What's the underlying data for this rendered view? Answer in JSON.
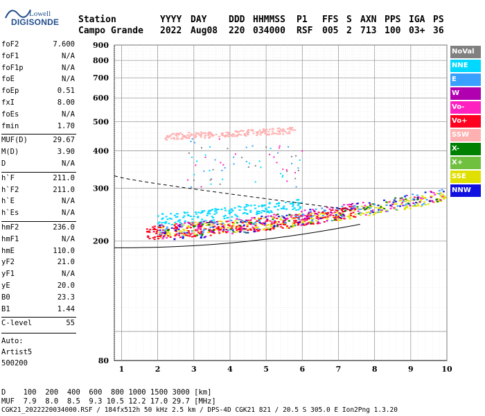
{
  "logo": {
    "top": "Lowell",
    "bottom": "DIGISONDE"
  },
  "header": {
    "labels": [
      "Station",
      "YYYY",
      "DAY",
      "DDD",
      "HHMMSS",
      "P1",
      "FFS",
      "S",
      "AXN",
      "PPS",
      "IGA",
      "PS"
    ],
    "values": [
      "Campo Grande",
      "2022",
      "Aug08",
      "220",
      "034000",
      "RSF",
      "005",
      "2",
      "713",
      "100",
      "03+",
      "36"
    ]
  },
  "params": [
    {
      "label": "foF2",
      "value": "7.600"
    },
    {
      "label": "foF1",
      "value": "N/A"
    },
    {
      "label": "foF1p",
      "value": "N/A"
    },
    {
      "label": "foE",
      "value": "N/A"
    },
    {
      "label": "foEp",
      "value": "0.51"
    },
    {
      "label": "fxI",
      "value": "8.00"
    },
    {
      "label": "foEs",
      "value": "N/A"
    },
    {
      "label": "fmin",
      "value": "1.70"
    },
    {
      "label": "MUF(D)",
      "value": "29.67"
    },
    {
      "label": "M(D)",
      "value": "3.90"
    },
    {
      "label": "D",
      "value": "N/A"
    },
    {
      "label": "h`F",
      "value": "211.0"
    },
    {
      "label": "h`F2",
      "value": "211.0"
    },
    {
      "label": "h`E",
      "value": "N/A"
    },
    {
      "label": "h`Es",
      "value": "N/A"
    },
    {
      "label": "hmF2",
      "value": "236.0"
    },
    {
      "label": "hmF1",
      "value": "N/A"
    },
    {
      "label": "hmE",
      "value": "110.0"
    },
    {
      "label": "yF2",
      "value": "21.0"
    },
    {
      "label": "yF1",
      "value": "N/A"
    },
    {
      "label": "yE",
      "value": "20.0"
    },
    {
      "label": "B0",
      "value": "23.3"
    },
    {
      "label": "B1",
      "value": "1.44"
    },
    {
      "label": "C-level",
      "value": "55"
    }
  ],
  "auto": {
    "line1": "Auto:",
    "line2": "Artist5",
    "line3": "500200"
  },
  "legend": [
    {
      "name": "NoVal",
      "color": "#808080"
    },
    {
      "name": "NNE",
      "color": "#00d8ff"
    },
    {
      "name": "E",
      "color": "#3aa0ff"
    },
    {
      "name": "W",
      "color": "#b000b0"
    },
    {
      "name": "Vo-",
      "color": "#ff20c0"
    },
    {
      "name": "Vo+",
      "color": "#ff0020"
    },
    {
      "name": "SSW",
      "color": "#ffb0b0"
    },
    {
      "name": "X-",
      "color": "#008000"
    },
    {
      "name": "X+",
      "color": "#70c040"
    },
    {
      "name": "SSE",
      "color": "#e0e000"
    },
    {
      "name": "NNW",
      "color": "#1010e0"
    }
  ],
  "footer": {
    "d_line": "D    100  200  400  600  800 1000 1500 3000 [km]",
    "muf_line": "MUF  7.9  8.0  8.5  9.3 10.5 12.2 17.0 29.7 [MHz]",
    "file_line": "CGK21_2022220034000.RSF / 184fx512h 50 kHz 2.5 km / DPS-4D CGK21 821 / 20.5 S 305.0 E Ion2Png 1.3.20"
  },
  "chart_data": {
    "type": "scatter",
    "xlabel": "",
    "ylabel": "",
    "xlim": [
      0.8,
      10.0
    ],
    "ylim": [
      80,
      900
    ],
    "x_ticks": [
      1,
      2,
      3,
      4,
      5,
      6,
      7,
      8,
      9,
      10
    ],
    "y_ticks": [
      80,
      200,
      300,
      400,
      500,
      600,
      700,
      800,
      900
    ],
    "grid": true,
    "series": [
      {
        "name": "SSE",
        "color": "#e0e000",
        "x": [
          2.0,
          2.5,
          3.0,
          3.5,
          4.0,
          4.5,
          5.0,
          5.5,
          6.0,
          6.5,
          7.0,
          7.5,
          8.0,
          8.5,
          9.0,
          9.5,
          10.0
        ],
        "y": [
          215,
          218,
          220,
          222,
          224,
          226,
          229,
          232,
          236,
          240,
          245,
          250,
          256,
          262,
          268,
          275,
          282
        ]
      },
      {
        "name": "NNE",
        "color": "#00d8ff",
        "x": [
          2.0,
          2.5,
          3.0,
          3.5,
          4.0,
          4.5,
          5.0,
          5.5,
          6.0
        ],
        "y": [
          235,
          238,
          240,
          245,
          250,
          255,
          258,
          262,
          266
        ]
      },
      {
        "name": "Vo+",
        "color": "#ff0020",
        "x": [
          1.7,
          2.0,
          2.5,
          3.0,
          3.5,
          4.0,
          4.5,
          5.0,
          5.5,
          6.0,
          6.5,
          7.0,
          7.5
        ],
        "y": [
          212,
          214,
          216,
          218,
          220,
          222,
          225,
          228,
          231,
          235,
          240,
          246,
          252
        ]
      },
      {
        "name": "SSW",
        "color": "#ffb0b0",
        "x": [
          2.2,
          2.6,
          3.0,
          3.4,
          3.8,
          4.2,
          4.6,
          5.0,
          5.4,
          5.8
        ],
        "y": [
          445,
          448,
          450,
          452,
          455,
          458,
          460,
          462,
          465,
          468
        ]
      }
    ]
  }
}
